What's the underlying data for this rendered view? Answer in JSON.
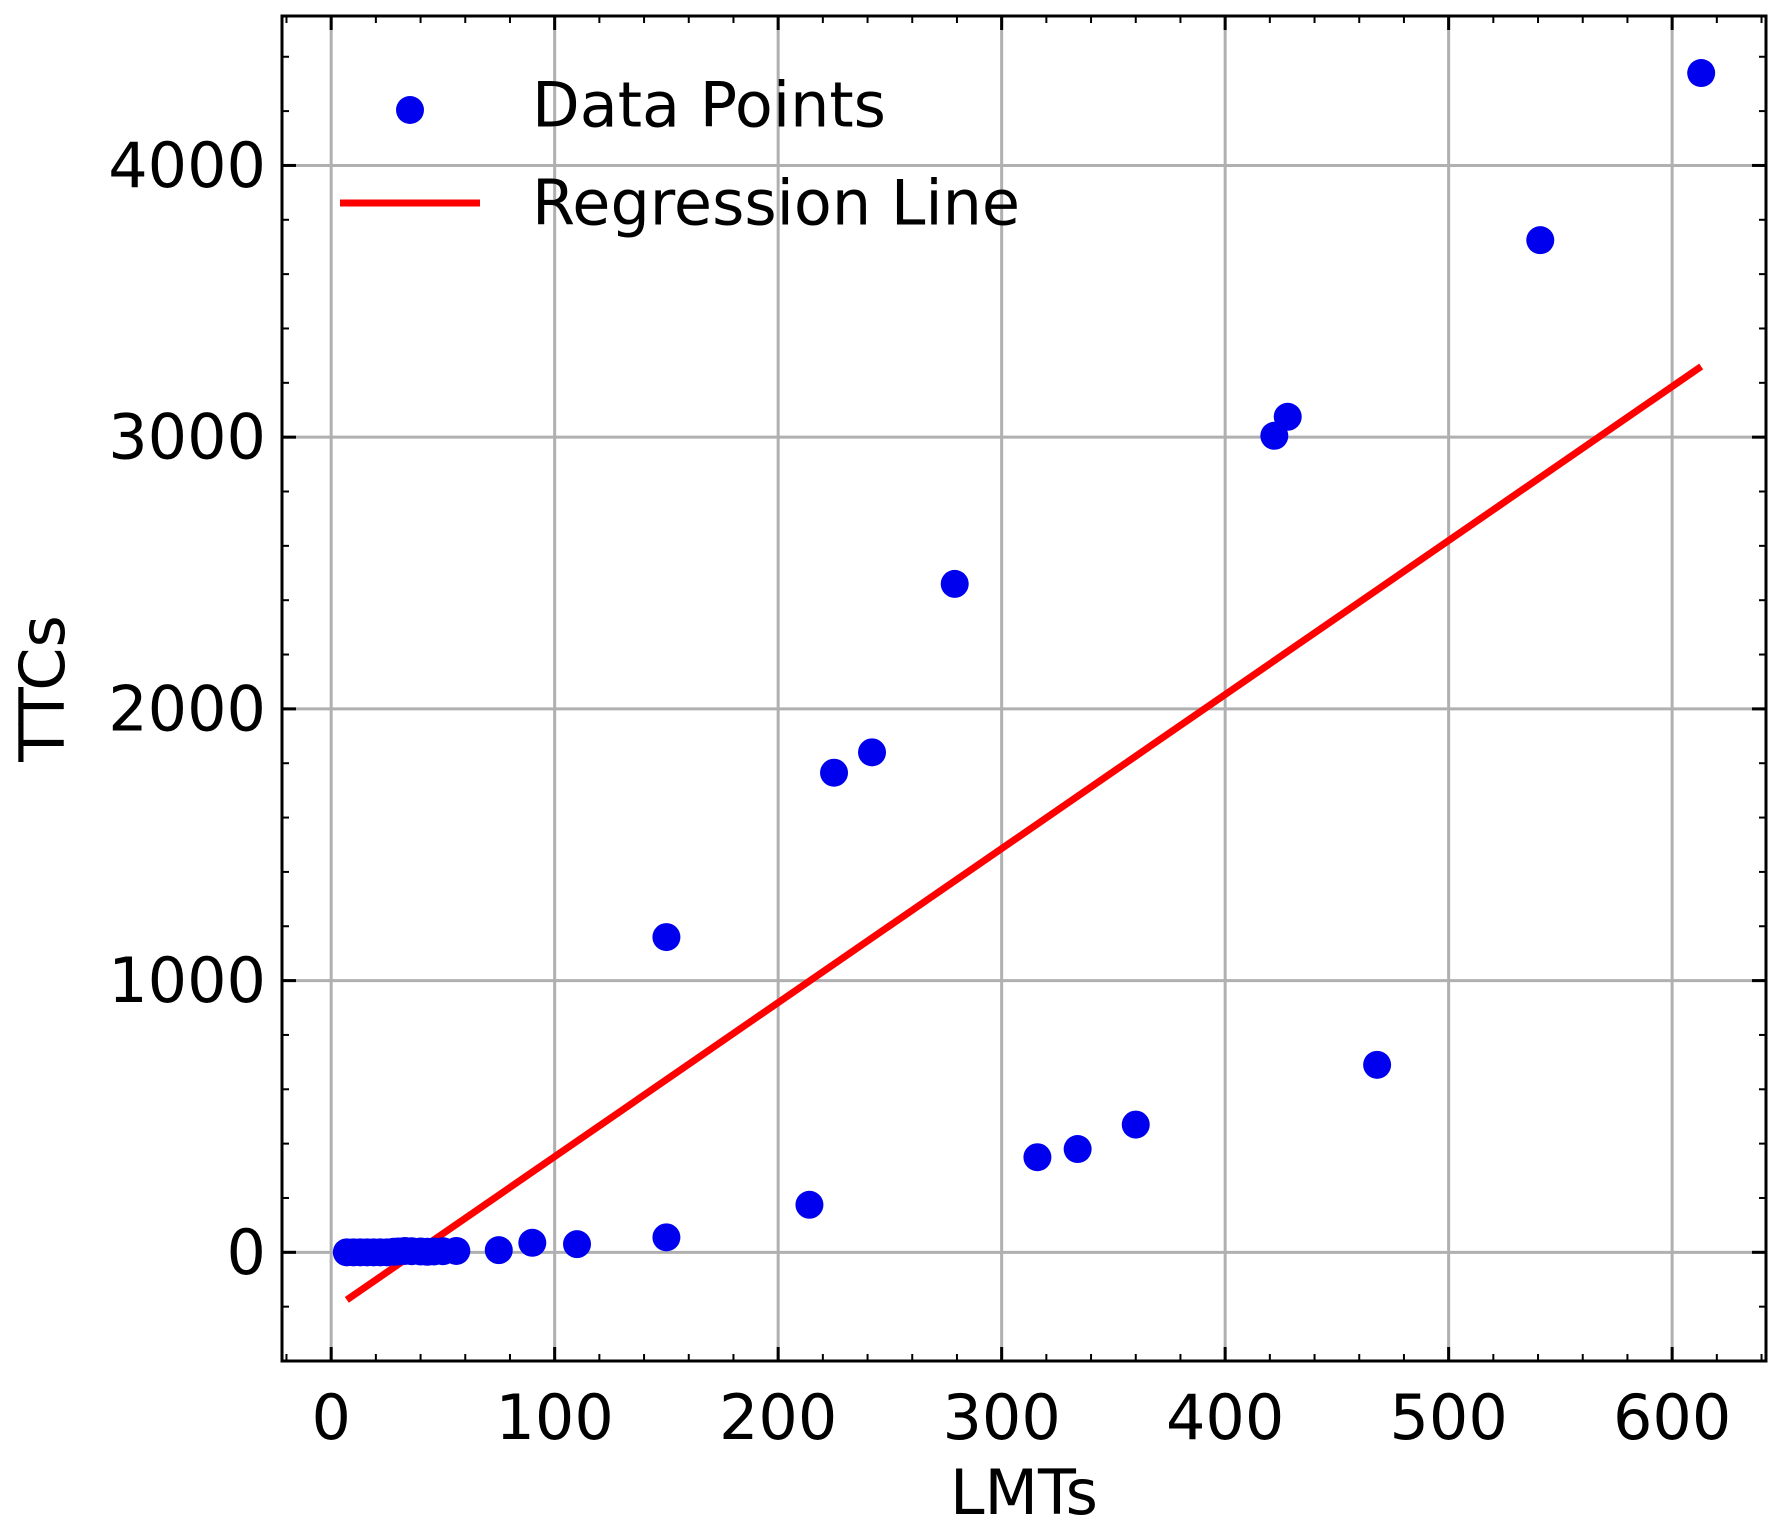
{
  "chart_data": {
    "type": "scatter",
    "title": "",
    "xlabel": "LMTs",
    "ylabel": "TTCs",
    "xlim": [
      -22,
      642
    ],
    "ylim": [
      -400,
      4550
    ],
    "grid": true,
    "legend_position": "top-left",
    "x_ticks": [
      0,
      100,
      200,
      300,
      400,
      500,
      600
    ],
    "y_ticks": [
      0,
      1000,
      2000,
      3000,
      4000
    ],
    "x_minor_step": 20,
    "y_minor_step": 200,
    "colors": {
      "points": "#0000ee",
      "line": "#ff0000",
      "grid": "#b0b0b0"
    },
    "series": [
      {
        "name": "Data Points",
        "kind": "scatter",
        "x": [
          7,
          10,
          13,
          16,
          19,
          22,
          25,
          28,
          30,
          33,
          36,
          40,
          43,
          46,
          50,
          56,
          75,
          90,
          110,
          150,
          150,
          214,
          225,
          242,
          279,
          316,
          334,
          360,
          422,
          428,
          468,
          541,
          613
        ],
        "y": [
          0,
          0,
          0,
          0,
          0,
          0,
          0,
          2,
          3,
          5,
          4,
          3,
          2,
          3,
          4,
          5,
          8,
          35,
          30,
          1160,
          55,
          175,
          1765,
          1840,
          2460,
          350,
          380,
          470,
          3005,
          3075,
          690,
          3725,
          4340
        ]
      },
      {
        "name": "Regression Line",
        "kind": "line",
        "x": [
          7,
          613
        ],
        "y": [
          -175,
          3260
        ]
      }
    ]
  }
}
